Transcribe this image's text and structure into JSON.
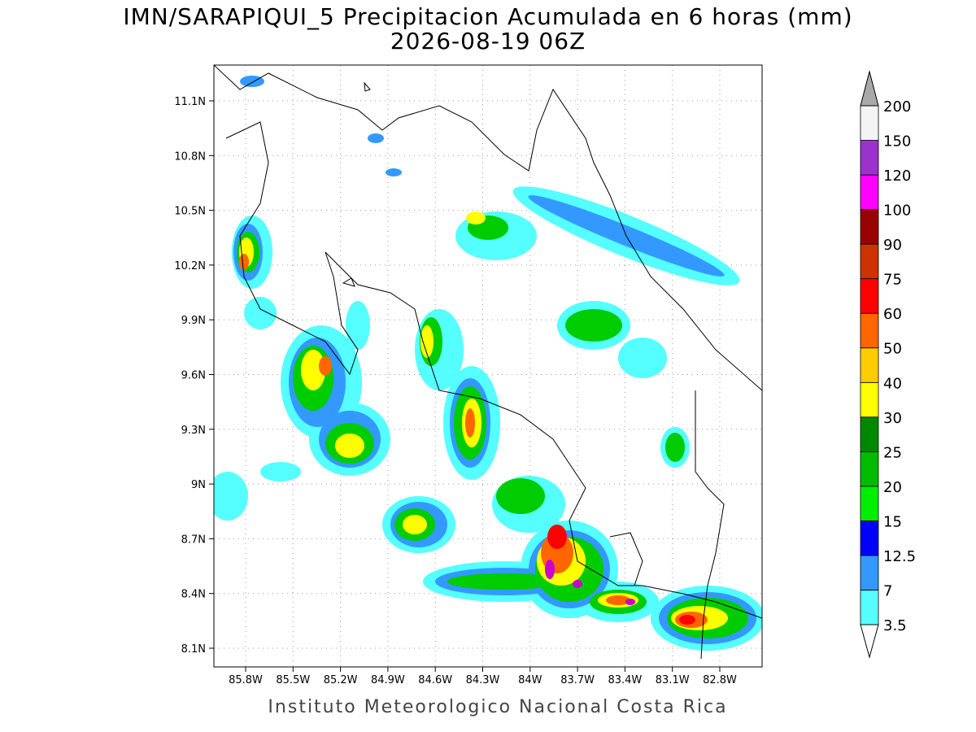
{
  "title": "IMN/SARAPIQUI_5 Precipitacion Acumulada en 6 horas (mm)",
  "subtitle": "2026-08-19 06Z",
  "map": {
    "lat_labels": [
      "11.1N",
      "10.8N",
      "10.5N",
      "10.2N",
      "9.9N",
      "9.6N",
      "9.3N",
      "9N",
      "8.7N",
      "8.4N",
      "8.1N"
    ],
    "lon_labels": [
      "85.8W",
      "85.5W",
      "85.2W",
      "84.9W",
      "84.6W",
      "84.3W",
      "84W",
      "83.7W",
      "83.4W",
      "83.1W",
      "82.8W"
    ]
  },
  "colorbar": {
    "levels": [
      3.5,
      7,
      12.5,
      15,
      20,
      25,
      30,
      40,
      50,
      60,
      75,
      90,
      100,
      120,
      150,
      200
    ],
    "colors": [
      "#55ffff",
      "#3399ff",
      "#0000ff",
      "#00ee00",
      "#00bb00",
      "#008800",
      "#ffff00",
      "#ffcc00",
      "#ff6600",
      "#ff0000",
      "#cc3300",
      "#990000",
      "#ff00ff",
      "#9933cc",
      "#f4f4f4"
    ],
    "under_color": "#ffffff",
    "over_color": "#a8a8a8"
  },
  "footer": "Instituto Meteorologico Nacional Costa Rica"
}
